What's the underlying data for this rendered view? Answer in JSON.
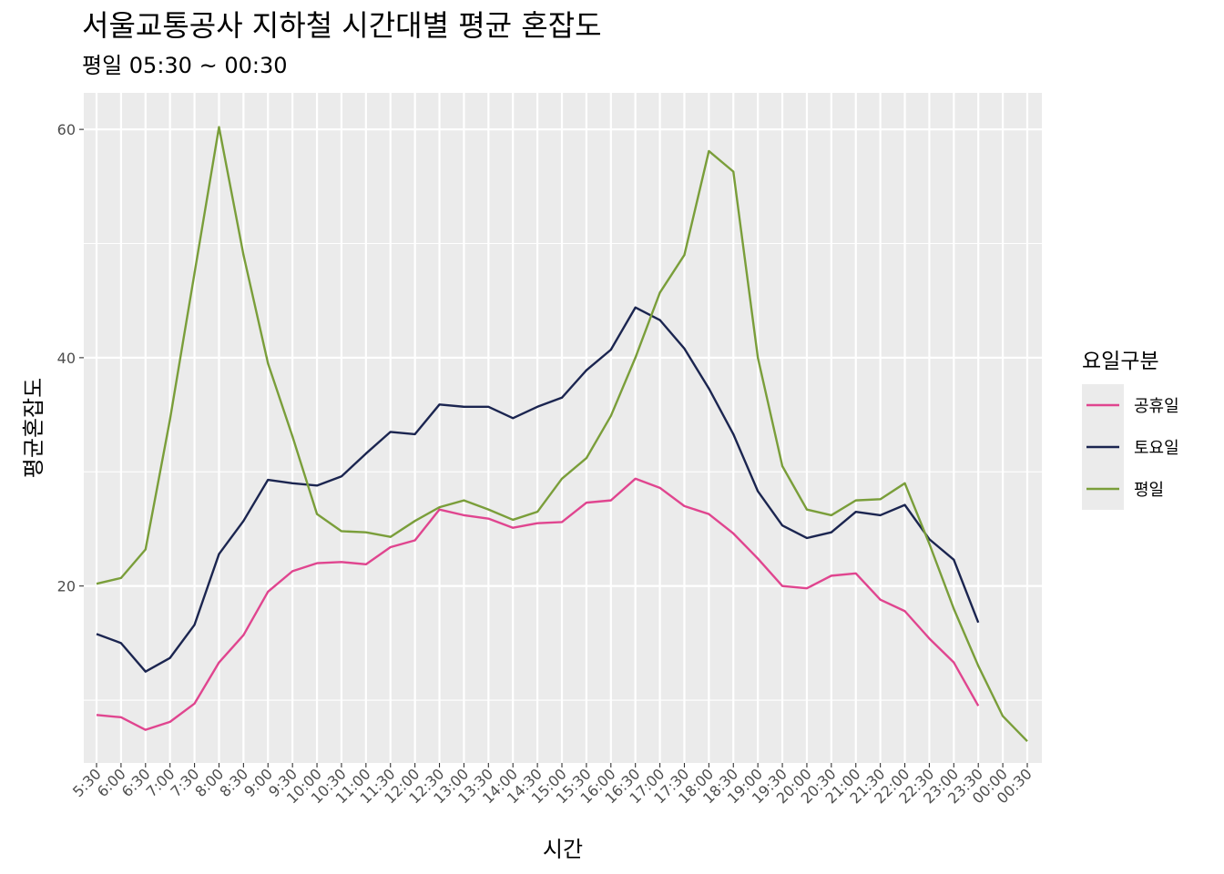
{
  "chart_data": {
    "type": "line",
    "title": "서울교통공사 지하철 시간대별 평균 혼잡도",
    "subtitle": "평일 05:30 ~ 00:30",
    "xlabel": "시간",
    "ylabel": "평균혼잡도",
    "ylim": [
      4.5,
      63.2
    ],
    "yticks": [
      20,
      40,
      60
    ],
    "grid": true,
    "legend_title": "요일구분",
    "legend_position": "right",
    "categories": [
      "5:30",
      "6:00",
      "6:30",
      "7:00",
      "7:30",
      "8:00",
      "8:30",
      "9:00",
      "9:30",
      "10:00",
      "10:30",
      "11:00",
      "11:30",
      "12:00",
      "12:30",
      "13:00",
      "13:30",
      "14:00",
      "14:30",
      "15:00",
      "15:30",
      "16:00",
      "16:30",
      "17:00",
      "17:30",
      "18:00",
      "18:30",
      "19:00",
      "19:30",
      "20:00",
      "20:30",
      "21:00",
      "21:30",
      "22:00",
      "22:30",
      "23:00",
      "23:30",
      "00:00",
      "00:30"
    ],
    "series": [
      {
        "name": "공휴일",
        "color": "#e0458f",
        "values": [
          8.7,
          8.5,
          7.4,
          8.1,
          9.7,
          13.3,
          15.7,
          19.5,
          21.3,
          22.0,
          22.1,
          21.9,
          23.4,
          24.0,
          26.7,
          26.2,
          25.9,
          25.1,
          25.5,
          25.6,
          27.3,
          27.5,
          29.4,
          28.6,
          27.0,
          26.3,
          24.6,
          22.4,
          20.0,
          19.8,
          20.9,
          21.1,
          18.8,
          17.8,
          15.4,
          13.3,
          9.5,
          null,
          null
        ]
      },
      {
        "name": "토요일",
        "color": "#1b2550",
        "values": [
          15.8,
          15.0,
          12.5,
          13.7,
          16.6,
          22.8,
          25.7,
          29.3,
          29.0,
          28.8,
          29.6,
          31.6,
          33.5,
          33.3,
          35.9,
          35.7,
          35.7,
          34.7,
          35.7,
          36.5,
          38.9,
          40.7,
          44.4,
          43.3,
          40.8,
          37.3,
          33.3,
          28.3,
          25.3,
          24.2,
          24.7,
          26.5,
          26.2,
          27.1,
          24.1,
          22.3,
          16.8,
          null,
          null
        ]
      },
      {
        "name": "평일",
        "color": "#7a9e3a",
        "values": [
          20.2,
          20.7,
          23.2,
          34.6,
          47.4,
          60.2,
          49.0,
          39.5,
          33.1,
          26.3,
          24.8,
          24.7,
          24.3,
          25.7,
          26.9,
          27.5,
          26.7,
          25.8,
          26.5,
          29.4,
          31.2,
          34.9,
          40.0,
          45.7,
          49.0,
          58.1,
          56.3,
          40.0,
          30.5,
          26.7,
          26.2,
          27.5,
          27.6,
          29.0,
          23.7,
          18.0,
          13.0,
          8.6,
          6.4
        ]
      }
    ]
  }
}
